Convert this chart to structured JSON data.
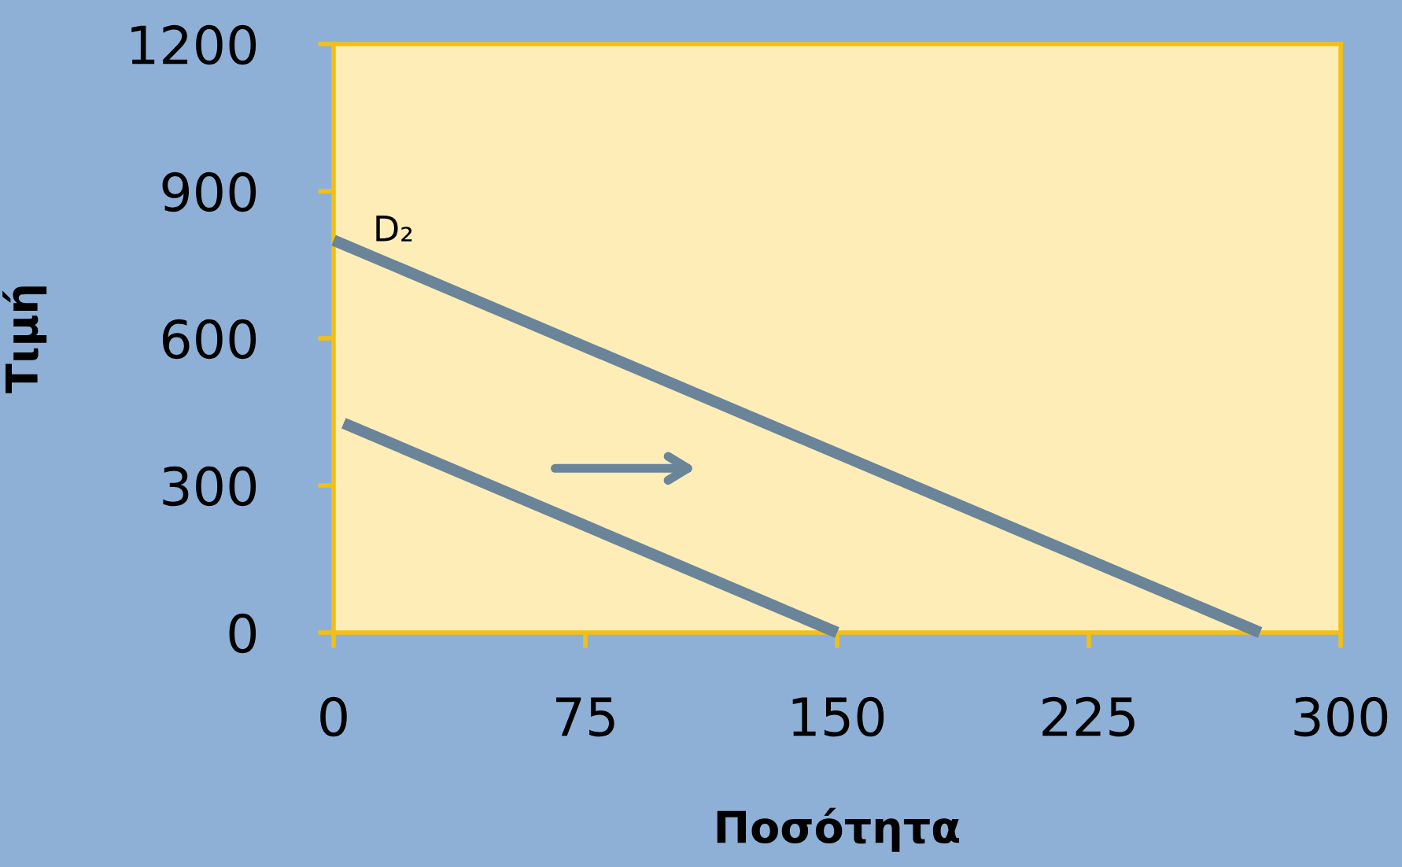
{
  "chart_data": {
    "type": "line",
    "xlabel": "Ποσότητα",
    "ylabel": "Τιμή",
    "xlim": [
      0,
      300
    ],
    "xticks": [
      0,
      75,
      150,
      225,
      300
    ],
    "ylim": [
      0,
      1200
    ],
    "yticks": [
      0,
      300,
      600,
      900,
      1200
    ],
    "grid": false,
    "legend": false,
    "marker": "none",
    "line_style": "solid",
    "series": [
      {
        "color": "#6a8499",
        "x": [
          3,
          150
        ],
        "values": [
          427,
          0
        ]
      },
      {
        "name": "D₂",
        "color": "#6a8499",
        "x": [
          0,
          276
        ],
        "values": [
          800,
          0
        ]
      }
    ]
  }
}
